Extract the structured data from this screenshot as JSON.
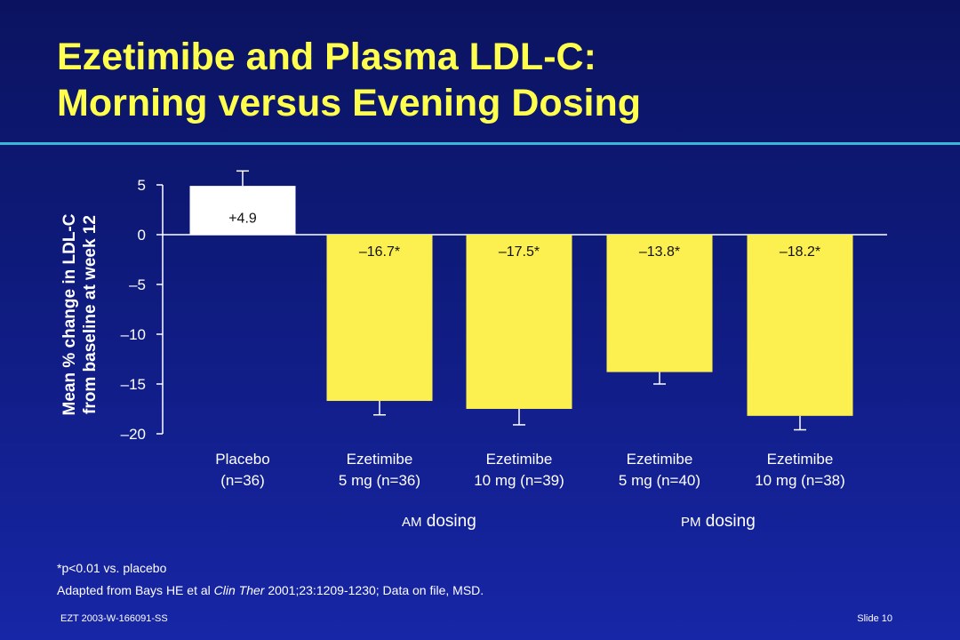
{
  "slide": {
    "title_line1": "Ezetimibe and Plasma LDL-C:",
    "title_line2": "Morning versus Evening Dosing",
    "group_am_prefix": "AM",
    "group_am_suffix": " dosing",
    "group_pm_prefix": "PM",
    "group_pm_suffix": " dosing",
    "footnote": "*p<0.01 vs. placebo",
    "source_before": "Adapted from Bays HE et al ",
    "source_journal": "Clin Ther",
    "source_after": " 2001;23:1209-1230; Data on file, MSD.",
    "code": "EZT 2003-W-166091-SS",
    "slide_number": "Slide 10"
  },
  "chart_data": {
    "type": "bar",
    "ylabel_line1": "Mean % change in LDL-C",
    "ylabel_line2": "from baseline at week 12",
    "ylim": [
      -20,
      5
    ],
    "yticks": [
      5,
      0,
      -5,
      -10,
      -15,
      -20
    ],
    "ytick_labels": [
      "5",
      "0",
      "–5",
      "–10",
      "–15",
      "–20"
    ],
    "categories": [
      [
        "Placebo",
        "(n=36)"
      ],
      [
        "Ezetimibe",
        "5 mg (n=36)"
      ],
      [
        "Ezetimibe",
        "10 mg (n=39)"
      ],
      [
        "Ezetimibe",
        "5 mg (n=40)"
      ],
      [
        "Ezetimibe",
        "10 mg (n=38)"
      ]
    ],
    "values": [
      4.9,
      -16.7,
      -17.5,
      -13.8,
      -18.2
    ],
    "error": [
      1.5,
      1.4,
      1.6,
      1.2,
      1.4
    ],
    "data_labels": [
      "+4.9",
      "–16.7*",
      "–17.5*",
      "–13.8*",
      "–18.2*"
    ],
    "bar_colors": [
      "#ffffff",
      "#fbf04f",
      "#fbf04f",
      "#fbf04f",
      "#fbf04f"
    ],
    "grid": false
  }
}
